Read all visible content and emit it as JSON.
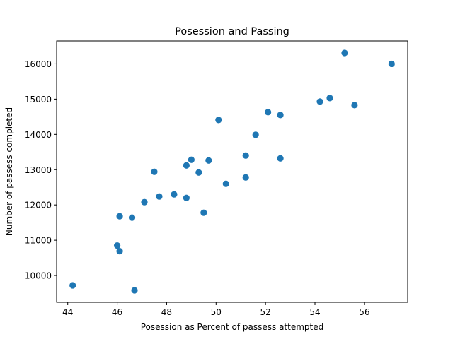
{
  "chart_data": {
    "type": "scatter",
    "title": "Posession and Passing",
    "xlabel": "Posession as Percent of passess attempted",
    "ylabel": "Number of passess completed",
    "xlim": [
      43.55,
      57.75
    ],
    "ylim": [
      9240,
      16650
    ],
    "xticks": [
      44,
      46,
      48,
      50,
      52,
      54,
      56
    ],
    "yticks": [
      10000,
      11000,
      12000,
      13000,
      14000,
      15000,
      16000
    ],
    "grid": false,
    "marker_color": "#1f77b4",
    "points": [
      {
        "x": 44.2,
        "y": 9720
      },
      {
        "x": 46.0,
        "y": 10850
      },
      {
        "x": 46.1,
        "y": 10690
      },
      {
        "x": 46.1,
        "y": 11680
      },
      {
        "x": 46.6,
        "y": 11640
      },
      {
        "x": 46.7,
        "y": 9580
      },
      {
        "x": 47.1,
        "y": 12080
      },
      {
        "x": 47.5,
        "y": 12940
      },
      {
        "x": 47.7,
        "y": 12240
      },
      {
        "x": 48.3,
        "y": 12300
      },
      {
        "x": 48.8,
        "y": 13120
      },
      {
        "x": 48.8,
        "y": 12200
      },
      {
        "x": 49.0,
        "y": 13280
      },
      {
        "x": 49.3,
        "y": 12920
      },
      {
        "x": 49.5,
        "y": 11780
      },
      {
        "x": 49.7,
        "y": 13260
      },
      {
        "x": 50.1,
        "y": 14410
      },
      {
        "x": 50.4,
        "y": 12600
      },
      {
        "x": 51.2,
        "y": 13400
      },
      {
        "x": 51.2,
        "y": 12780
      },
      {
        "x": 51.6,
        "y": 13990
      },
      {
        "x": 52.1,
        "y": 14630
      },
      {
        "x": 52.6,
        "y": 14550
      },
      {
        "x": 52.6,
        "y": 13320
      },
      {
        "x": 54.2,
        "y": 14930
      },
      {
        "x": 54.6,
        "y": 15030
      },
      {
        "x": 55.2,
        "y": 16310
      },
      {
        "x": 55.6,
        "y": 14830
      },
      {
        "x": 57.1,
        "y": 16000
      }
    ]
  }
}
